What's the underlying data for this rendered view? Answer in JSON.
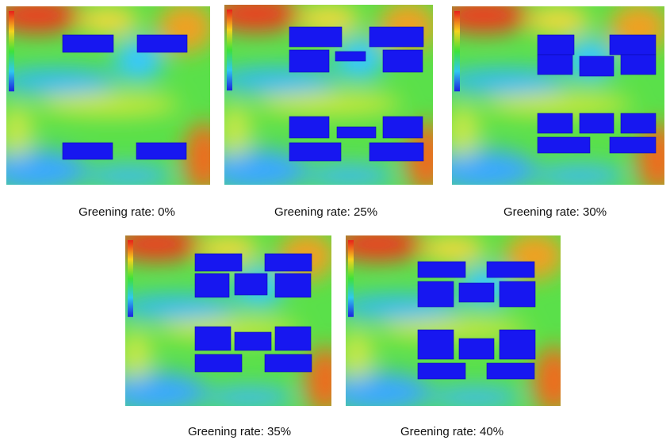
{
  "panels": [
    {
      "caption": "Greening rate: 0%"
    },
    {
      "caption": "Greening rate: 25%"
    },
    {
      "caption": "Greening rate: 30%"
    },
    {
      "caption": "Greening rate: 35%"
    },
    {
      "caption": "Greening rate: 40%"
    }
  ]
}
